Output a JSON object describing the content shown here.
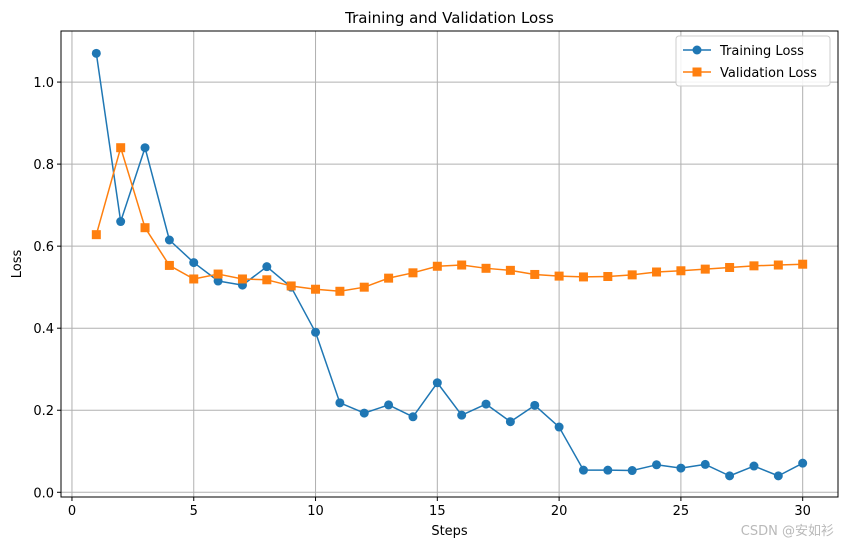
{
  "chart_data": {
    "type": "line",
    "title": "Training and Validation Loss",
    "xlabel": "Steps",
    "ylabel": "Loss",
    "xlim": [
      -0.45,
      31.45
    ],
    "ylim": [
      -0.0115,
      1.1245
    ],
    "xticks": [
      0,
      5,
      10,
      15,
      20,
      25,
      30
    ],
    "yticks": [
      0.0,
      0.2,
      0.4,
      0.6,
      0.8,
      1.0
    ],
    "xtick_labels": [
      "0",
      "5",
      "10",
      "15",
      "20",
      "25",
      "30"
    ],
    "ytick_labels": [
      "0.0",
      "0.2",
      "0.4",
      "0.6",
      "0.8",
      "1.0"
    ],
    "grid": true,
    "legend_position": "top-right",
    "x": [
      1,
      2,
      3,
      4,
      5,
      6,
      7,
      8,
      9,
      10,
      11,
      12,
      13,
      14,
      15,
      16,
      17,
      18,
      19,
      20,
      21,
      22,
      23,
      24,
      25,
      26,
      27,
      28,
      29,
      30
    ],
    "series": [
      {
        "name": "Training Loss",
        "color": "#1f77b4",
        "marker": "circle",
        "values": [
          1.07,
          0.66,
          0.84,
          0.615,
          0.56,
          0.515,
          0.505,
          0.55,
          0.5,
          0.39,
          0.218,
          0.193,
          0.213,
          0.184,
          0.267,
          0.188,
          0.215,
          0.172,
          0.212,
          0.159,
          0.054,
          0.054,
          0.053,
          0.067,
          0.059,
          0.068,
          0.04,
          0.064,
          0.04,
          0.071
        ]
      },
      {
        "name": "Validation Loss",
        "color": "#ff7f0e",
        "marker": "square",
        "values": [
          0.628,
          0.84,
          0.645,
          0.553,
          0.52,
          0.532,
          0.52,
          0.518,
          0.503,
          0.495,
          0.49,
          0.5,
          0.522,
          0.535,
          0.551,
          0.554,
          0.546,
          0.541,
          0.531,
          0.527,
          0.525,
          0.526,
          0.53,
          0.537,
          0.54,
          0.544,
          0.548,
          0.552,
          0.554,
          0.556
        ]
      }
    ]
  },
  "watermark": "CSDN @安如衫"
}
